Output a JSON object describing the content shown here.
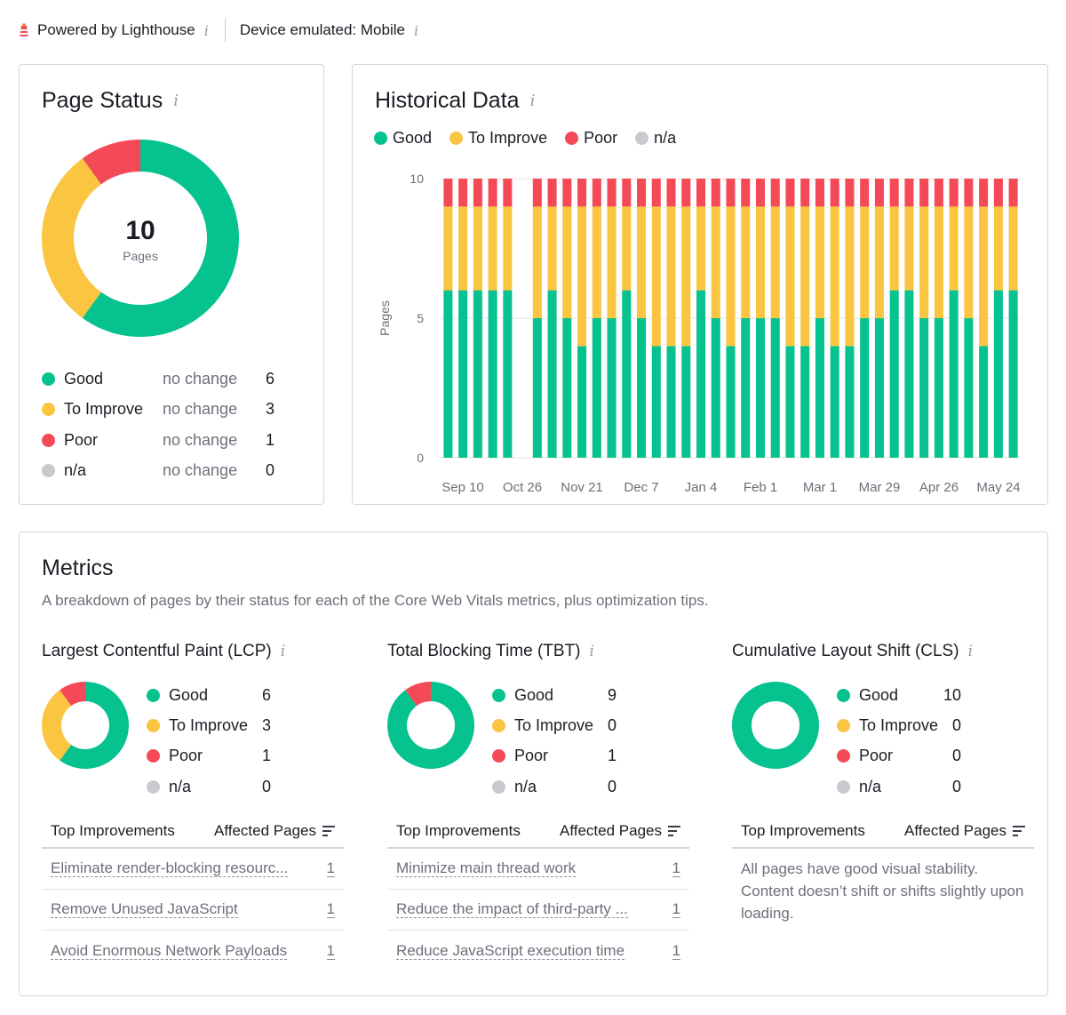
{
  "topbar": {
    "powered_by": "Powered by Lighthouse",
    "device": "Device emulated: Mobile",
    "info_glyph": "i"
  },
  "colors": {
    "good": "#05c28f",
    "to_improve": "#fac540",
    "poor": "#f44a58",
    "na": "#c8cad0",
    "border": "#d3d5db"
  },
  "page_status": {
    "title": "Page Status",
    "total": "10",
    "total_label": "Pages",
    "rows": [
      {
        "label": "Good",
        "change": "no change",
        "count": "6",
        "value": 6,
        "color": "#05c28f"
      },
      {
        "label": "To Improve",
        "change": "no change",
        "count": "3",
        "value": 3,
        "color": "#fac540"
      },
      {
        "label": "Poor",
        "change": "no change",
        "count": "1",
        "value": 1,
        "color": "#f44a58"
      },
      {
        "label": "n/a",
        "change": "no change",
        "count": "0",
        "value": 0,
        "color": "#c8cad0"
      }
    ]
  },
  "historical": {
    "title": "Historical Data",
    "legend": [
      "Good",
      "To Improve",
      "Poor",
      "n/a"
    ]
  },
  "chart_data": {
    "type": "bar",
    "stacked": true,
    "title": "Historical Data",
    "ylabel": "Pages",
    "xlabel": "",
    "ylim": [
      0,
      10
    ],
    "yticks": [
      "0",
      "5",
      "10"
    ],
    "xticks": [
      "Sep 10",
      "Oct 26",
      "Nov 21",
      "Dec 7",
      "Jan 4",
      "Feb 1",
      "Mar 1",
      "Mar 29",
      "Apr 26",
      "May 24"
    ],
    "legend_position": "top-left",
    "series": [
      {
        "name": "Good",
        "color": "#05c28f",
        "values": [
          6,
          6,
          6,
          6,
          6,
          null,
          5,
          6,
          5,
          4,
          5,
          5,
          6,
          5,
          4,
          4,
          4,
          6,
          5,
          4,
          5,
          5,
          5,
          4,
          4,
          5,
          4,
          4,
          5,
          5,
          6,
          6,
          5,
          5,
          6,
          5,
          4,
          6,
          6
        ]
      },
      {
        "name": "To Improve",
        "color": "#fac540",
        "values": [
          3,
          3,
          3,
          3,
          3,
          null,
          4,
          3,
          4,
          5,
          4,
          4,
          3,
          4,
          5,
          5,
          5,
          3,
          4,
          5,
          4,
          4,
          4,
          5,
          5,
          4,
          5,
          5,
          4,
          4,
          3,
          3,
          4,
          4,
          3,
          4,
          5,
          3,
          3
        ]
      },
      {
        "name": "Poor",
        "color": "#f44a58",
        "values": [
          1,
          1,
          1,
          1,
          1,
          null,
          1,
          1,
          1,
          1,
          1,
          1,
          1,
          1,
          1,
          1,
          1,
          1,
          1,
          1,
          1,
          1,
          1,
          1,
          1,
          1,
          1,
          1,
          1,
          1,
          1,
          1,
          1,
          1,
          1,
          1,
          1,
          1,
          1
        ]
      },
      {
        "name": "n/a",
        "color": "#c8cad0",
        "values": [
          0,
          0,
          0,
          0,
          0,
          null,
          0,
          0,
          0,
          0,
          0,
          0,
          0,
          0,
          0,
          0,
          0,
          0,
          0,
          0,
          0,
          0,
          0,
          0,
          0,
          0,
          0,
          0,
          0,
          0,
          0,
          0,
          0,
          0,
          0,
          0,
          0,
          0,
          0
        ]
      }
    ]
  },
  "metrics": {
    "title": "Metrics",
    "subtitle": "A breakdown of pages by their status for each of the Core Web Vitals metrics, plus optimization tips.",
    "columns": [
      {
        "title": "Largest Contentful Paint (LCP)",
        "rows": [
          {
            "label": "Good",
            "count": "6",
            "value": 6,
            "color": "#05c28f"
          },
          {
            "label": "To Improve",
            "count": "3",
            "value": 3,
            "color": "#fac540"
          },
          {
            "label": "Poor",
            "count": "1",
            "value": 1,
            "color": "#f44a58"
          },
          {
            "label": "n/a",
            "count": "0",
            "value": 0,
            "color": "#c8cad0"
          }
        ],
        "table_head": {
          "left": "Top Improvements",
          "right": "Affected Pages"
        },
        "improvements": [
          {
            "label": "Eliminate render-blocking resourc...",
            "count": "1"
          },
          {
            "label": "Remove Unused JavaScript",
            "count": "1"
          },
          {
            "label": "Avoid Enormous Network Payloads",
            "count": "1"
          }
        ],
        "note": ""
      },
      {
        "title": "Total Blocking Time (TBT)",
        "rows": [
          {
            "label": "Good",
            "count": "9",
            "value": 9,
            "color": "#05c28f"
          },
          {
            "label": "To Improve",
            "count": "0",
            "value": 0,
            "color": "#fac540"
          },
          {
            "label": "Poor",
            "count": "1",
            "value": 1,
            "color": "#f44a58"
          },
          {
            "label": "n/a",
            "count": "0",
            "value": 0,
            "color": "#c8cad0"
          }
        ],
        "table_head": {
          "left": "Top Improvements",
          "right": "Affected Pages"
        },
        "improvements": [
          {
            "label": "Minimize main thread work",
            "count": "1"
          },
          {
            "label": "Reduce the impact of third-party ...",
            "count": "1"
          },
          {
            "label": "Reduce JavaScript execution time",
            "count": "1"
          }
        ],
        "note": ""
      },
      {
        "title": "Cumulative Layout Shift (CLS)",
        "rows": [
          {
            "label": "Good",
            "count": "10",
            "value": 10,
            "color": "#05c28f"
          },
          {
            "label": "To Improve",
            "count": "0",
            "value": 0,
            "color": "#fac540"
          },
          {
            "label": "Poor",
            "count": "0",
            "value": 0,
            "color": "#f44a58"
          },
          {
            "label": "n/a",
            "count": "0",
            "value": 0,
            "color": "#c8cad0"
          }
        ],
        "table_head": {
          "left": "Top Improvements",
          "right": "Affected Pages"
        },
        "improvements": [],
        "note": "All pages have good visual stability. Content doesn’t shift or shifts slightly upon loading."
      }
    ]
  }
}
